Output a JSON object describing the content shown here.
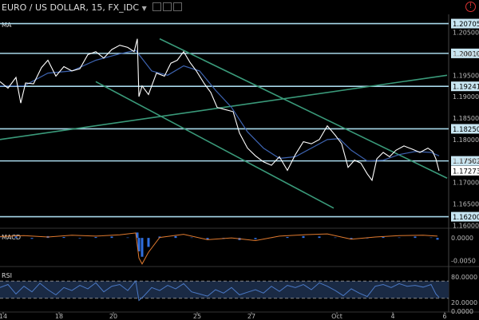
{
  "header": {
    "symbol_title": "EURO / US DOLLAR, 15, FX_IDC",
    "caret_icon": "chevron-down-icon",
    "alert_icon": "alert-icon",
    "alert_glyph": "!"
  },
  "indicators": {
    "ma_label": "MA",
    "macd_label": "MACD",
    "rsi_label": "RSI"
  },
  "colors": {
    "background": "#000000",
    "price": "#ffffff",
    "ma": "#3d63b0",
    "hline": "#a8d8ea",
    "trendline": "#3a9a7a",
    "macd_hist": "#2f6fe0",
    "macd_signal": "#e07a2f",
    "rsi": "#4a78c4"
  },
  "chart_data": {
    "type": "line",
    "price_axis": {
      "ticks": [
        "1.20500",
        "1.20000",
        "1.19500",
        "1.19000",
        "1.18500",
        "1.18000",
        "1.17500",
        "1.17000",
        "1.16500",
        "1.16000"
      ],
      "range": [
        1.1595,
        1.2092
      ]
    },
    "time_axis": {
      "ticks": [
        "14",
        "18",
        "20",
        "25",
        "27",
        "Oct",
        "4",
        "6"
      ]
    },
    "horizontal_levels": [
      "1.20705",
      "1.20010",
      "1.19241",
      "1.18250",
      "1.17502",
      "1.16200"
    ],
    "last_price": "1.17273",
    "price_series": [
      [
        0,
        1.1935
      ],
      [
        10,
        1.192
      ],
      [
        20,
        1.1945
      ],
      [
        26,
        1.1885
      ],
      [
        32,
        1.1932
      ],
      [
        42,
        1.193
      ],
      [
        52,
        1.1968
      ],
      [
        60,
        1.1985
      ],
      [
        70,
        1.1948
      ],
      [
        80,
        1.197
      ],
      [
        90,
        1.196
      ],
      [
        100,
        1.1965
      ],
      [
        110,
        1.1998
      ],
      [
        120,
        1.2005
      ],
      [
        130,
        1.199
      ],
      [
        140,
        1.201
      ],
      [
        150,
        1.202
      ],
      [
        160,
        1.2015
      ],
      [
        168,
        1.2005
      ],
      [
        172,
        1.2035
      ],
      [
        174,
        1.19
      ],
      [
        178,
        1.1925
      ],
      [
        186,
        1.1905
      ],
      [
        196,
        1.1955
      ],
      [
        206,
        1.1948
      ],
      [
        214,
        1.1978
      ],
      [
        222,
        1.1985
      ],
      [
        230,
        1.2005
      ],
      [
        238,
        1.198
      ],
      [
        246,
        1.196
      ],
      [
        256,
        1.193
      ],
      [
        264,
        1.191
      ],
      [
        272,
        1.1875
      ],
      [
        282,
        1.187
      ],
      [
        292,
        1.1865
      ],
      [
        300,
        1.1815
      ],
      [
        310,
        1.178
      ],
      [
        320,
        1.1762
      ],
      [
        330,
        1.1748
      ],
      [
        340,
        1.174
      ],
      [
        350,
        1.176
      ],
      [
        360,
        1.1728
      ],
      [
        370,
        1.1765
      ],
      [
        380,
        1.1795
      ],
      [
        390,
        1.179
      ],
      [
        400,
        1.18
      ],
      [
        410,
        1.1832
      ],
      [
        420,
        1.181
      ],
      [
        428,
        1.179
      ],
      [
        436,
        1.1735
      ],
      [
        444,
        1.1752
      ],
      [
        452,
        1.1745
      ],
      [
        460,
        1.172
      ],
      [
        466,
        1.1705
      ],
      [
        472,
        1.1755
      ],
      [
        480,
        1.177
      ],
      [
        488,
        1.176
      ],
      [
        496,
        1.1775
      ],
      [
        506,
        1.1785
      ],
      [
        516,
        1.1778
      ],
      [
        526,
        1.177
      ],
      [
        536,
        1.178
      ],
      [
        542,
        1.1772
      ],
      [
        546,
        1.1755
      ],
      [
        550,
        1.1727
      ]
    ],
    "ma_series": [
      [
        0,
        1.1925
      ],
      [
        30,
        1.1925
      ],
      [
        60,
        1.1955
      ],
      [
        90,
        1.196
      ],
      [
        120,
        1.1985
      ],
      [
        150,
        1.2
      ],
      [
        170,
        1.2008
      ],
      [
        190,
        1.196
      ],
      [
        210,
        1.195
      ],
      [
        230,
        1.1972
      ],
      [
        250,
        1.196
      ],
      [
        270,
        1.1915
      ],
      [
        290,
        1.1875
      ],
      [
        310,
        1.1818
      ],
      [
        330,
        1.178
      ],
      [
        350,
        1.1756
      ],
      [
        370,
        1.176
      ],
      [
        390,
        1.178
      ],
      [
        410,
        1.18
      ],
      [
        425,
        1.1802
      ],
      [
        440,
        1.1775
      ],
      [
        460,
        1.175
      ],
      [
        480,
        1.1752
      ],
      [
        500,
        1.1765
      ],
      [
        520,
        1.1772
      ],
      [
        540,
        1.177
      ],
      [
        550,
        1.1762
      ]
    ],
    "trendlines": [
      [
        [
          0,
          1.18
        ],
        [
          560,
          1.195
        ]
      ],
      [
        [
          120,
          1.1935
        ],
        [
          418,
          1.164
        ]
      ],
      [
        [
          200,
          1.2035
        ],
        [
          560,
          1.171
        ]
      ]
    ],
    "macd": {
      "ticks": [
        "0.0000",
        "-0.0050"
      ],
      "range": [
        -0.0062,
        0.0018
      ],
      "histogram": [
        [
          0,
          0.0001
        ],
        [
          20,
          0.0003
        ],
        [
          40,
          -0.0002
        ],
        [
          60,
          0.0004
        ],
        [
          80,
          0.0002
        ],
        [
          100,
          -0.0001
        ],
        [
          120,
          0.0002
        ],
        [
          140,
          0.0003
        ],
        [
          160,
          0.0001
        ],
        [
          172,
          0.0012
        ],
        [
          174,
          -0.003
        ],
        [
          178,
          -0.0042
        ],
        [
          186,
          -0.002
        ],
        [
          200,
          0.0003
        ],
        [
          220,
          0.0004
        ],
        [
          240,
          0.0001
        ],
        [
          260,
          -0.0004
        ],
        [
          280,
          -0.0002
        ],
        [
          300,
          -0.0005
        ],
        [
          320,
          -0.0003
        ],
        [
          340,
          0.0001
        ],
        [
          360,
          0.0002
        ],
        [
          380,
          0.0004
        ],
        [
          400,
          0.0003
        ],
        [
          420,
          0.0001
        ],
        [
          440,
          -0.0003
        ],
        [
          460,
          -0.0001
        ],
        [
          480,
          0.0002
        ],
        [
          500,
          0.0001
        ],
        [
          520,
          0.0003
        ],
        [
          540,
          0.0001
        ],
        [
          548,
          -0.0004
        ]
      ],
      "signal": [
        [
          0,
          0.0003
        ],
        [
          30,
          0.0005
        ],
        [
          60,
          0.0002
        ],
        [
          90,
          0.0006
        ],
        [
          120,
          0.0004
        ],
        [
          150,
          0.0007
        ],
        [
          170,
          0.0011
        ],
        [
          174,
          -0.0045
        ],
        [
          178,
          -0.0058
        ],
        [
          186,
          -0.0032
        ],
        [
          200,
          0.0001
        ],
        [
          230,
          0.0008
        ],
        [
          260,
          -0.0004
        ],
        [
          290,
          0.0
        ],
        [
          320,
          -0.0006
        ],
        [
          350,
          0.0004
        ],
        [
          380,
          0.0007
        ],
        [
          410,
          0.0009
        ],
        [
          440,
          -0.0003
        ],
        [
          470,
          0.0002
        ],
        [
          500,
          0.0005
        ],
        [
          530,
          0.0006
        ],
        [
          548,
          0.0004
        ]
      ]
    },
    "rsi": {
      "ticks": [
        "80.0000",
        "20.0000",
        "0.0000"
      ],
      "range": [
        0,
        100
      ],
      "bands": [
        70,
        30
      ],
      "series": [
        [
          0,
          55
        ],
        [
          10,
          62
        ],
        [
          20,
          40
        ],
        [
          30,
          58
        ],
        [
          40,
          45
        ],
        [
          50,
          65
        ],
        [
          60,
          50
        ],
        [
          70,
          38
        ],
        [
          80,
          55
        ],
        [
          90,
          48
        ],
        [
          100,
          60
        ],
        [
          110,
          52
        ],
        [
          120,
          66
        ],
        [
          130,
          45
        ],
        [
          140,
          58
        ],
        [
          150,
          62
        ],
        [
          160,
          48
        ],
        [
          170,
          70
        ],
        [
          174,
          25
        ],
        [
          180,
          35
        ],
        [
          190,
          55
        ],
        [
          200,
          48
        ],
        [
          210,
          60
        ],
        [
          220,
          52
        ],
        [
          230,
          64
        ],
        [
          240,
          45
        ],
        [
          250,
          40
        ],
        [
          260,
          35
        ],
        [
          270,
          50
        ],
        [
          280,
          42
        ],
        [
          290,
          55
        ],
        [
          300,
          38
        ],
        [
          310,
          44
        ],
        [
          320,
          50
        ],
        [
          330,
          42
        ],
        [
          340,
          58
        ],
        [
          350,
          46
        ],
        [
          360,
          60
        ],
        [
          370,
          55
        ],
        [
          380,
          62
        ],
        [
          390,
          50
        ],
        [
          400,
          66
        ],
        [
          410,
          58
        ],
        [
          420,
          48
        ],
        [
          430,
          36
        ],
        [
          440,
          52
        ],
        [
          450,
          42
        ],
        [
          460,
          34
        ],
        [
          470,
          58
        ],
        [
          480,
          62
        ],
        [
          490,
          55
        ],
        [
          500,
          64
        ],
        [
          510,
          58
        ],
        [
          520,
          60
        ],
        [
          530,
          56
        ],
        [
          540,
          62
        ],
        [
          546,
          40
        ],
        [
          550,
          32
        ]
      ]
    }
  }
}
